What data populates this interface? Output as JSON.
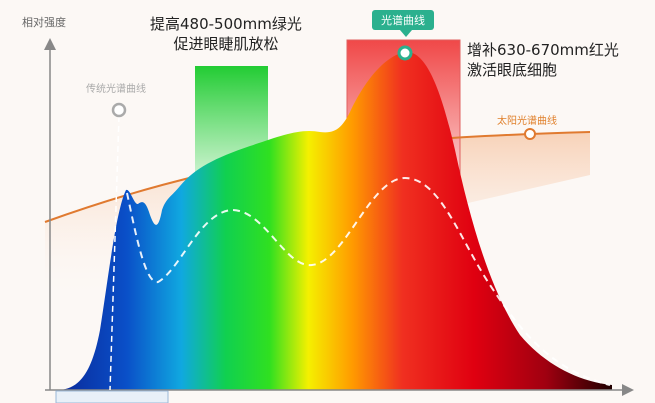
{
  "axis": {
    "y_label": "相对强度"
  },
  "annotations": {
    "green_line1": "提高480-500mm绿光",
    "green_line2": "促进眼睫肌放松",
    "red_line1": "增补630-670mm红光",
    "red_line2": "激活眼底细胞",
    "traditional_curve": "传统光谱曲线",
    "solar_curve": "太阳光谱曲线",
    "spectrum_badge": "光谱曲线"
  },
  "colors": {
    "solar": "#e07a30",
    "badge": "#2bb08e",
    "green_band": "#22cc33",
    "red_band": "#f04848"
  }
}
